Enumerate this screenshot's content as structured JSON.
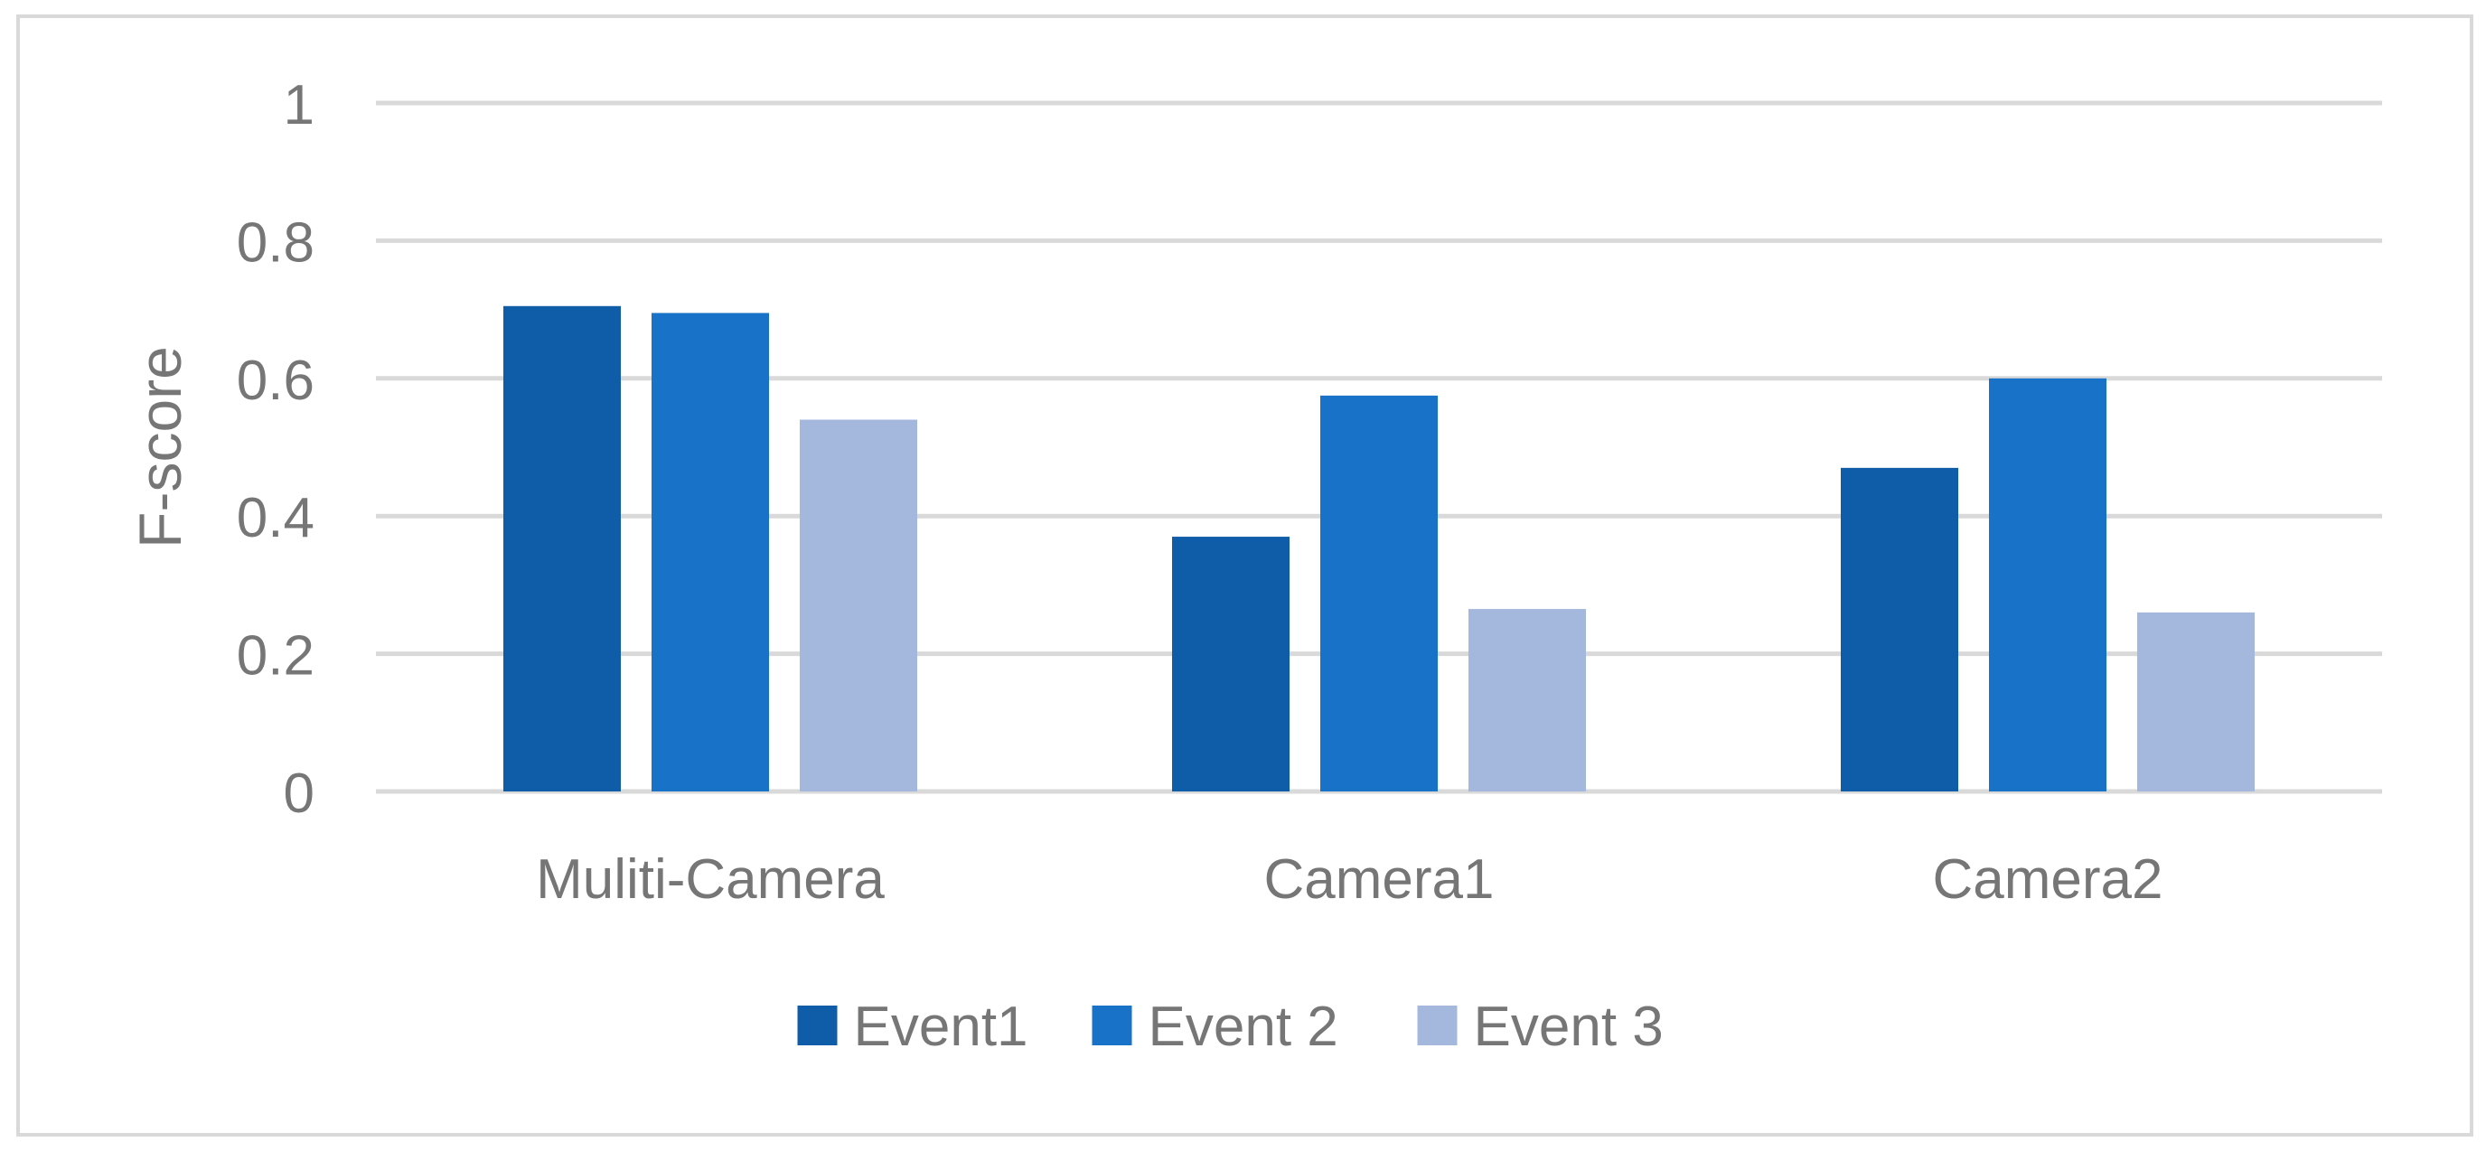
{
  "chart_data": {
    "type": "bar",
    "title": "",
    "xlabel": "",
    "ylabel": "F-score",
    "categories": [
      "Muliti-Camera",
      "Camera1",
      "Camera2"
    ],
    "series": [
      {
        "name": "Event1",
        "values": [
          0.705,
          0.37,
          0.47
        ],
        "color": "#0F5DA8"
      },
      {
        "name": "Event 2",
        "values": [
          0.695,
          0.575,
          0.6
        ],
        "color": "#1873C8"
      },
      {
        "name": "Event 3",
        "values": [
          0.54,
          0.265,
          0.26
        ],
        "color": "#A4B8DD"
      }
    ],
    "ylim": [
      0,
      1
    ],
    "yticks": [
      0,
      0.2,
      0.4,
      0.6,
      0.8,
      1
    ],
    "ytick_labels": [
      "0",
      "0.2",
      "0.4",
      "0.6",
      "0.8",
      "1"
    ],
    "grid": true,
    "legend": "bottom-center",
    "gridline_color": "#D9D9D9",
    "frame_color": "#D9D9D9"
  }
}
